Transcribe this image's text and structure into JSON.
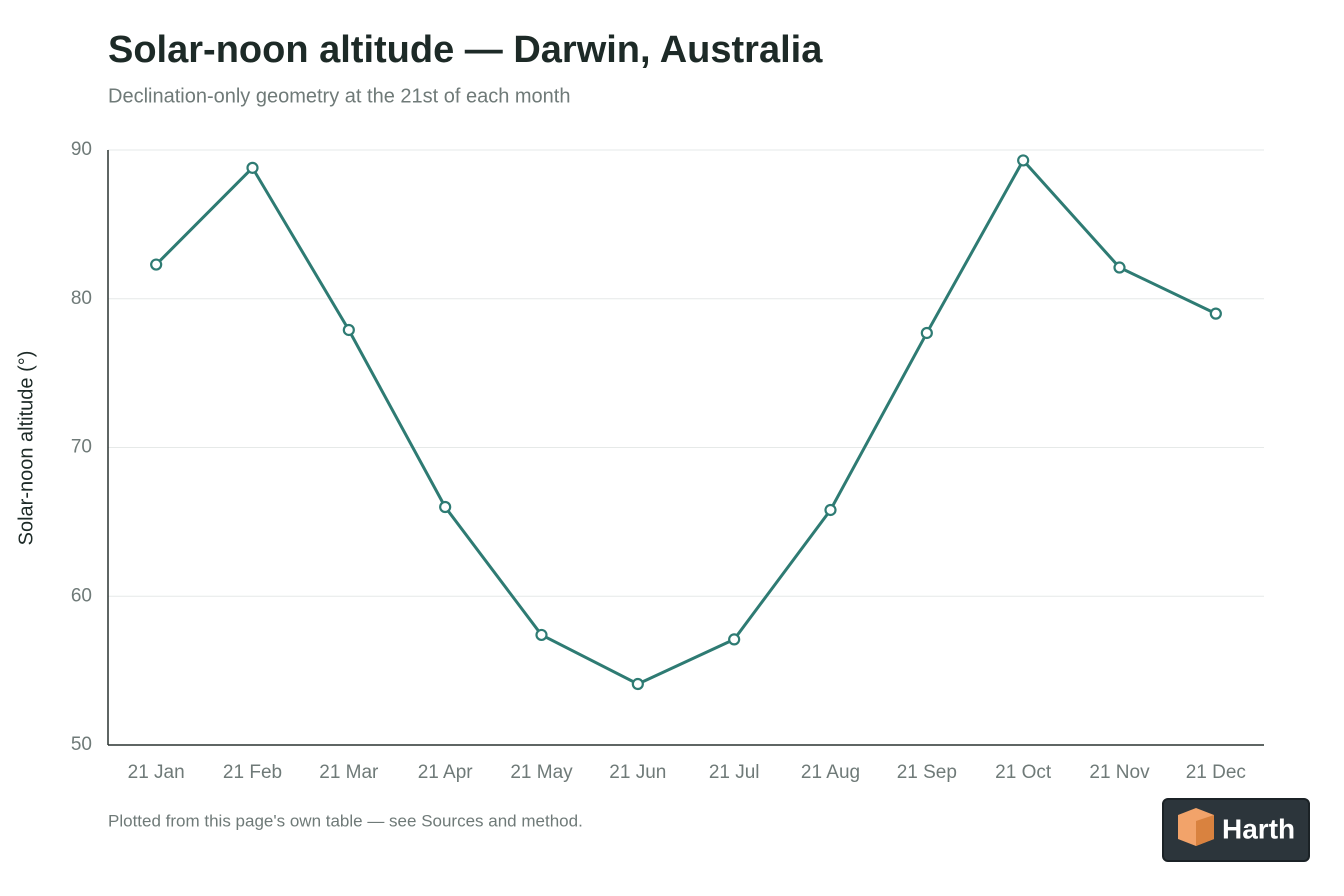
{
  "chart_data": {
    "type": "line",
    "title": "Solar-noon altitude — Darwin, Australia",
    "subtitle": "Declination-only geometry at the 21st of each month",
    "y_label": "Solar-noon altitude (°)",
    "footnote": "Plotted from this page's own table — see Sources and method.",
    "categories": [
      "21 Jan",
      "21 Feb",
      "21 Mar",
      "21 Apr",
      "21 May",
      "21 Jun",
      "21 Jul",
      "21 Aug",
      "21 Sep",
      "21 Oct",
      "21 Nov",
      "21 Dec"
    ],
    "series": [
      {
        "name": "Solar-noon altitude",
        "color": "#2e7b73",
        "values": [
          82.3,
          88.8,
          77.9,
          66.0,
          57.4,
          54.1,
          57.1,
          65.8,
          77.7,
          89.3,
          82.1,
          79.0
        ]
      }
    ],
    "ylim": [
      50,
      90
    ],
    "yticks": [
      50,
      60,
      70,
      80,
      90
    ],
    "grid": true
  },
  "logo": {
    "text": "Harth"
  }
}
